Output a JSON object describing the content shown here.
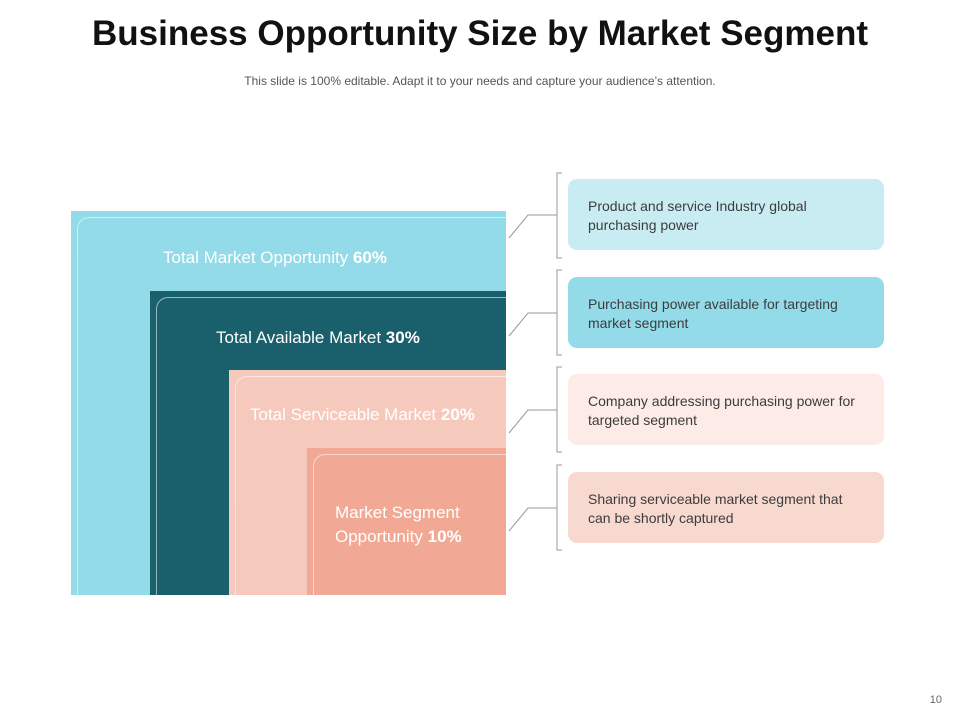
{
  "header": {
    "title": "Business Opportunity Size by Market Segment",
    "subtitle": "This slide is 100% editable. Adapt it to your needs and capture your audience’s attention."
  },
  "segments": [
    {
      "label": "Total Market Opportunity",
      "percent": "60%",
      "color": "#93dbe8"
    },
    {
      "label": "Total Available Market",
      "percent": "30%",
      "color": "#1a5f6c"
    },
    {
      "label": "Total Serviceable Market",
      "percent": "20%",
      "color": "#f6c9bd"
    },
    {
      "label": "Market Segment Opportunity",
      "percent": "10%",
      "color": "#f1a895"
    }
  ],
  "descriptions": [
    {
      "text": "Product and service Industry  global purchasing power",
      "color": "#c9ecf3"
    },
    {
      "text": "Purchasing power available for targeting market segment",
      "color": "#93dbe8"
    },
    {
      "text": "Company addressing purchasing power for targeted segment",
      "color": "#fcebe6"
    },
    {
      "text": "Sharing serviceable market segment that can be shortly captured",
      "color": "#f8d9d0"
    }
  ],
  "footer": {
    "page_number": "10"
  }
}
